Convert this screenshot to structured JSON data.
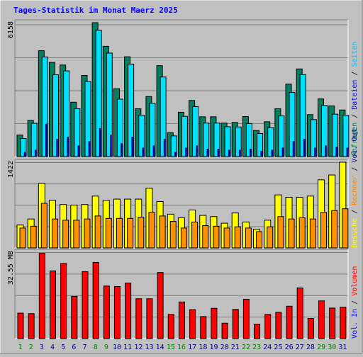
{
  "title": "Tages-Statistik im Monat Maerz 2025",
  "colors": {
    "background": "#c0c0c0",
    "title": "#0000ff",
    "anfragen": "#008040",
    "dateien": "#00c0ff",
    "seiten": "#00a0ff",
    "besuche": "#ffff00",
    "rechner": "#ff8000",
    "volumen": "#ff0000",
    "weekend_label": "#008000",
    "weekday_label": "#000080"
  },
  "right_legend": {
    "top": [
      {
        "text": "Anfragen",
        "color": "#008040"
      },
      {
        "text": "Dateien",
        "color": "#0000ff"
      },
      {
        "text": "Seiten",
        "color": "#00c0ff"
      }
    ],
    "middle": [
      {
        "text": "Besuche",
        "color": "#ffff00"
      },
      {
        "text": "Rechner",
        "color": "#ff8000"
      },
      {
        "text": "Vol. Out",
        "color": "#000080"
      }
    ],
    "bottom": [
      {
        "text": "Vol. In",
        "color": "#0000ff"
      },
      {
        "text": "Volumen",
        "color": "#ff0000"
      }
    ],
    "separator": " / "
  },
  "chart_data": [
    {
      "type": "bar",
      "panel": "top",
      "ylabel": "6158",
      "ylim": [
        0,
        6158
      ],
      "categories": [
        "1",
        "2",
        "3",
        "4",
        "5",
        "6",
        "7",
        "8",
        "9",
        "10",
        "11",
        "12",
        "13",
        "14",
        "15",
        "16",
        "17",
        "18",
        "19",
        "20",
        "21",
        "22",
        "23",
        "24",
        "25",
        "26",
        "27",
        "28",
        "29",
        "30",
        "31"
      ],
      "series": [
        {
          "name": "Anfragen",
          "values": [
            990,
            1660,
            4870,
            4330,
            4210,
            2500,
            3730,
            6158,
            5070,
            3120,
            4590,
            2200,
            2760,
            4180,
            1100,
            2040,
            2580,
            1830,
            1830,
            1540,
            1570,
            1840,
            1200,
            1600,
            2200,
            3330,
            4030,
            1930,
            2650,
            2330,
            2140
          ]
        },
        {
          "name": "Dateien",
          "values": [
            830,
            1530,
            4580,
            3760,
            3940,
            2200,
            3450,
            5810,
            4760,
            2640,
            4250,
            1900,
            2450,
            3660,
            950,
            1850,
            2300,
            1540,
            1540,
            1370,
            1360,
            1520,
            1060,
            1330,
            1870,
            2950,
            3770,
            1700,
            2350,
            1950,
            1900
          ]
        },
        {
          "name": "Seiten",
          "values": [
            200,
            300,
            1500,
            800,
            900,
            500,
            700,
            1300,
            1000,
            600,
            900,
            400,
            500,
            800,
            200,
            400,
            500,
            350,
            350,
            300,
            300,
            350,
            250,
            300,
            400,
            700,
            800,
            400,
            500,
            450,
            400
          ]
        }
      ]
    },
    {
      "type": "bar",
      "panel": "middle",
      "ylabel": "1422",
      "ylim": [
        0,
        1422
      ],
      "categories": [
        "1",
        "2",
        "3",
        "4",
        "5",
        "6",
        "7",
        "8",
        "9",
        "10",
        "11",
        "12",
        "13",
        "14",
        "15",
        "16",
        "17",
        "18",
        "19",
        "20",
        "21",
        "22",
        "23",
        "24",
        "25",
        "26",
        "27",
        "28",
        "29",
        "30",
        "31"
      ],
      "series": [
        {
          "name": "Besuche",
          "values": [
            380,
            480,
            1070,
            790,
            720,
            710,
            720,
            860,
            790,
            810,
            810,
            810,
            990,
            770,
            560,
            500,
            630,
            540,
            520,
            410,
            580,
            430,
            310,
            460,
            880,
            840,
            840,
            860,
            1130,
            1210,
            1422
          ]
        },
        {
          "name": "Rechner",
          "values": [
            330,
            360,
            740,
            480,
            460,
            460,
            480,
            530,
            490,
            490,
            490,
            510,
            590,
            530,
            440,
            330,
            430,
            370,
            360,
            330,
            350,
            330,
            270,
            350,
            520,
            480,
            500,
            480,
            590,
            620,
            650
          ]
        }
      ]
    },
    {
      "type": "bar",
      "panel": "bottom",
      "ylabel": "32.55 MB",
      "ylim": [
        0,
        32.55
      ],
      "categories": [
        "1",
        "2",
        "3",
        "4",
        "5",
        "6",
        "7",
        "8",
        "9",
        "10",
        "11",
        "12",
        "13",
        "14",
        "15",
        "16",
        "17",
        "18",
        "19",
        "20",
        "21",
        "22",
        "23",
        "24",
        "25",
        "26",
        "27",
        "28",
        "29",
        "30",
        "31"
      ],
      "series": [
        {
          "name": "Volumen",
          "values": [
            9.6,
            9.4,
            32.1,
            25.5,
            28.3,
            15.9,
            25.2,
            28.7,
            19.8,
            19.6,
            20.9,
            15.0,
            15.0,
            24.9,
            9.1,
            13.8,
            10.9,
            8.3,
            11.4,
            5.8,
            11.0,
            14.8,
            5.4,
            9.1,
            9.9,
            12.2,
            19.1,
            7.6,
            14.2,
            11.5,
            11.8
          ]
        }
      ]
    }
  ],
  "weekend_days": [
    "1",
    "2",
    "8",
    "9",
    "15",
    "16",
    "22",
    "23",
    "29",
    "30"
  ]
}
